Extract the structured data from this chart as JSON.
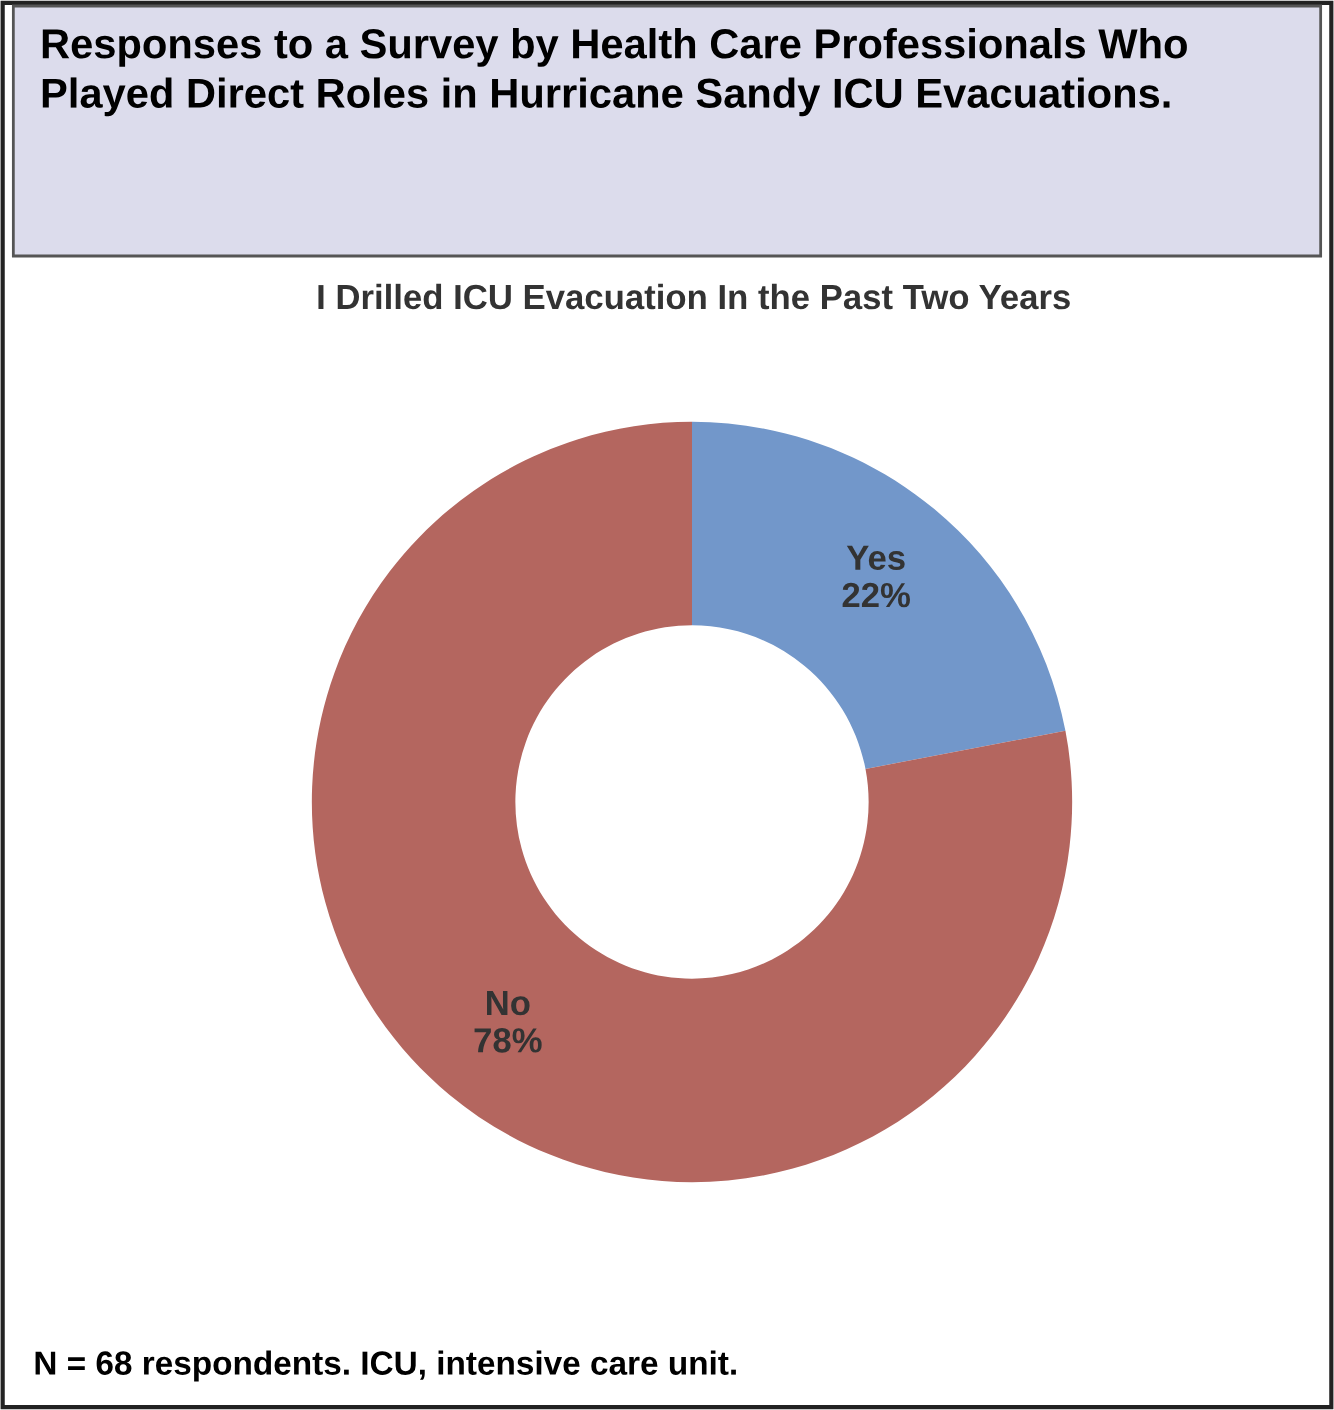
{
  "chart_data": {
    "type": "donut",
    "title": "Responses to a Survey by Health Care Professionals Who Played Direct Roles in Hurricane Sandy ICU Evacuations.",
    "subtitle": "I Drilled ICU Evacuation In the Past Two Years",
    "categories": [
      "Yes",
      "No"
    ],
    "values": [
      22,
      78
    ],
    "value_labels": [
      "22%",
      "78%"
    ],
    "colors": [
      "#7297ca",
      "#b4665f"
    ],
    "annotations": [
      "N = 68 respondents. ICU, intensive care unit."
    ]
  }
}
